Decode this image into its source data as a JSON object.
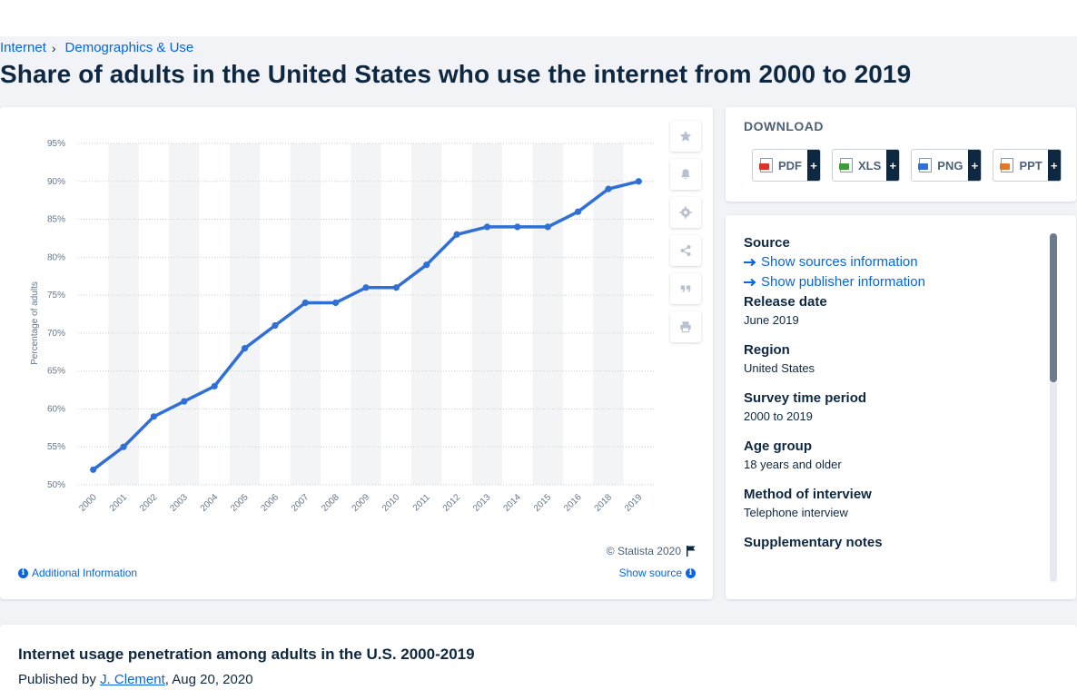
{
  "breadcrumb": {
    "items": [
      "Internet",
      "Demographics & Use"
    ]
  },
  "page_title": "Share of adults in the United States who use the internet from 2000 to 2019",
  "chart_data": {
    "type": "line",
    "title": "",
    "xlabel": "",
    "ylabel": "Percentage of adults",
    "categories": [
      "2000",
      "2001",
      "2002",
      "2003",
      "2004",
      "2005",
      "2006",
      "2007",
      "2008",
      "2009",
      "2010",
      "2011",
      "2012",
      "2013",
      "2014",
      "2015",
      "2016",
      "2018",
      "2019"
    ],
    "series": [
      {
        "values": [
          52,
          55,
          59,
          61,
          63,
          68,
          71,
          74,
          74,
          76,
          76,
          79,
          83,
          84,
          84,
          84,
          86,
          89,
          90
        ]
      }
    ],
    "ylim": [
      50,
      95
    ],
    "yticks": [
      "50%",
      "55%",
      "60%",
      "65%",
      "70%",
      "75%",
      "80%",
      "85%",
      "90%",
      "95%"
    ],
    "grid": true,
    "line_color": "#2f6fd6"
  },
  "chart_footer": {
    "copyright": "© Statista 2020",
    "additional_info": "Additional Information",
    "show_source": "Show source"
  },
  "download": {
    "title": "DOWNLOAD",
    "buttons": [
      {
        "label": "PDF",
        "plus": "+",
        "color": "#d9342b"
      },
      {
        "label": "XLS",
        "plus": "+",
        "color": "#3f9a3c"
      },
      {
        "label": "PNG",
        "plus": "+",
        "color": "#2f6fd6"
      },
      {
        "label": "PPT",
        "plus": "+",
        "color": "#e0792b"
      }
    ]
  },
  "info": {
    "source_label": "Source",
    "show_sources": "Show sources information",
    "show_publisher": "Show publisher information",
    "release_label": "Release date",
    "release_value": "June 2019",
    "region_label": "Region",
    "region_value": "United States",
    "period_label": "Survey time period",
    "period_value": "2000 to 2019",
    "age_label": "Age group",
    "age_value": "18 years and older",
    "method_label": "Method of interview",
    "method_value": "Telephone interview",
    "supp_label": "Supplementary notes"
  },
  "footer": {
    "title": "Internet usage penetration among adults in the U.S. 2000-2019",
    "published_prefix": "Published by",
    "author": "J. Clement",
    "date": ", Aug 20, 2020"
  }
}
